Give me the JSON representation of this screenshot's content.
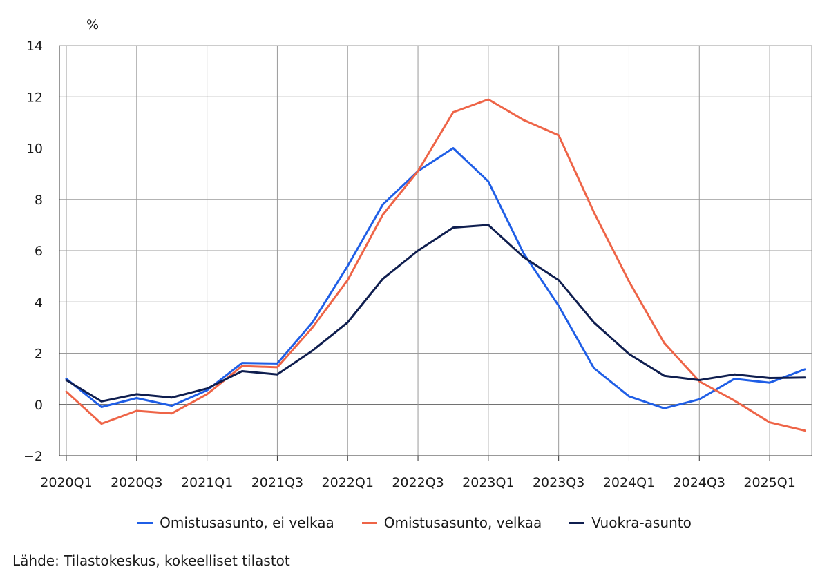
{
  "chart_data": {
    "type": "line",
    "ylabel": "%",
    "ylim": [
      -2,
      14
    ],
    "yticks": [
      -2,
      0,
      2,
      4,
      6,
      8,
      10,
      12,
      14
    ],
    "y_tick_labels": [
      "−2",
      "0",
      "2",
      "4",
      "6",
      "8",
      "10",
      "12",
      "14"
    ],
    "categories": [
      "2020Q1",
      "2020Q2",
      "2020Q3",
      "2020Q4",
      "2021Q1",
      "2021Q2",
      "2021Q3",
      "2021Q4",
      "2022Q1",
      "2022Q2",
      "2022Q3",
      "2022Q4",
      "2023Q1",
      "2023Q2",
      "2023Q3",
      "2023Q4",
      "2024Q1",
      "2024Q2",
      "2024Q3",
      "2024Q4",
      "2025Q1",
      "2025Q2"
    ],
    "x_tick_labels": [
      "2020Q1",
      "2020Q3",
      "2021Q1",
      "2021Q3",
      "2022Q1",
      "2022Q3",
      "2023Q1",
      "2023Q3",
      "2024Q1",
      "2024Q3",
      "2025Q1"
    ],
    "grid": true,
    "series": [
      {
        "name": "Omistusasunto, ei velkaa",
        "color": "#1f5ee6",
        "values": [
          1.0,
          -0.1,
          0.25,
          -0.05,
          0.55,
          1.62,
          1.6,
          3.2,
          5.4,
          7.8,
          9.1,
          10.0,
          8.7,
          5.9,
          3.85,
          1.42,
          0.32,
          -0.15,
          0.2,
          1.0,
          0.85,
          1.37
        ]
      },
      {
        "name": "Omistusasunto, velkaa",
        "color": "#ee6447",
        "values": [
          0.5,
          -0.75,
          -0.25,
          -0.35,
          0.4,
          1.5,
          1.45,
          3.0,
          4.85,
          7.4,
          9.1,
          11.4,
          11.9,
          11.1,
          10.5,
          7.5,
          4.8,
          2.4,
          0.9,
          0.15,
          -0.7,
          -1.02
        ]
      },
      {
        "name": "Vuokra-asunto",
        "color": "#0f1e4f",
        "values": [
          0.95,
          0.12,
          0.4,
          0.27,
          0.62,
          1.3,
          1.17,
          2.1,
          3.2,
          4.9,
          6.0,
          6.9,
          7.0,
          5.75,
          4.85,
          3.2,
          1.97,
          1.12,
          0.95,
          1.17,
          1.03,
          1.05
        ]
      }
    ]
  },
  "source": "Lähde: Tilastokeskus, kokeelliset tilastot"
}
